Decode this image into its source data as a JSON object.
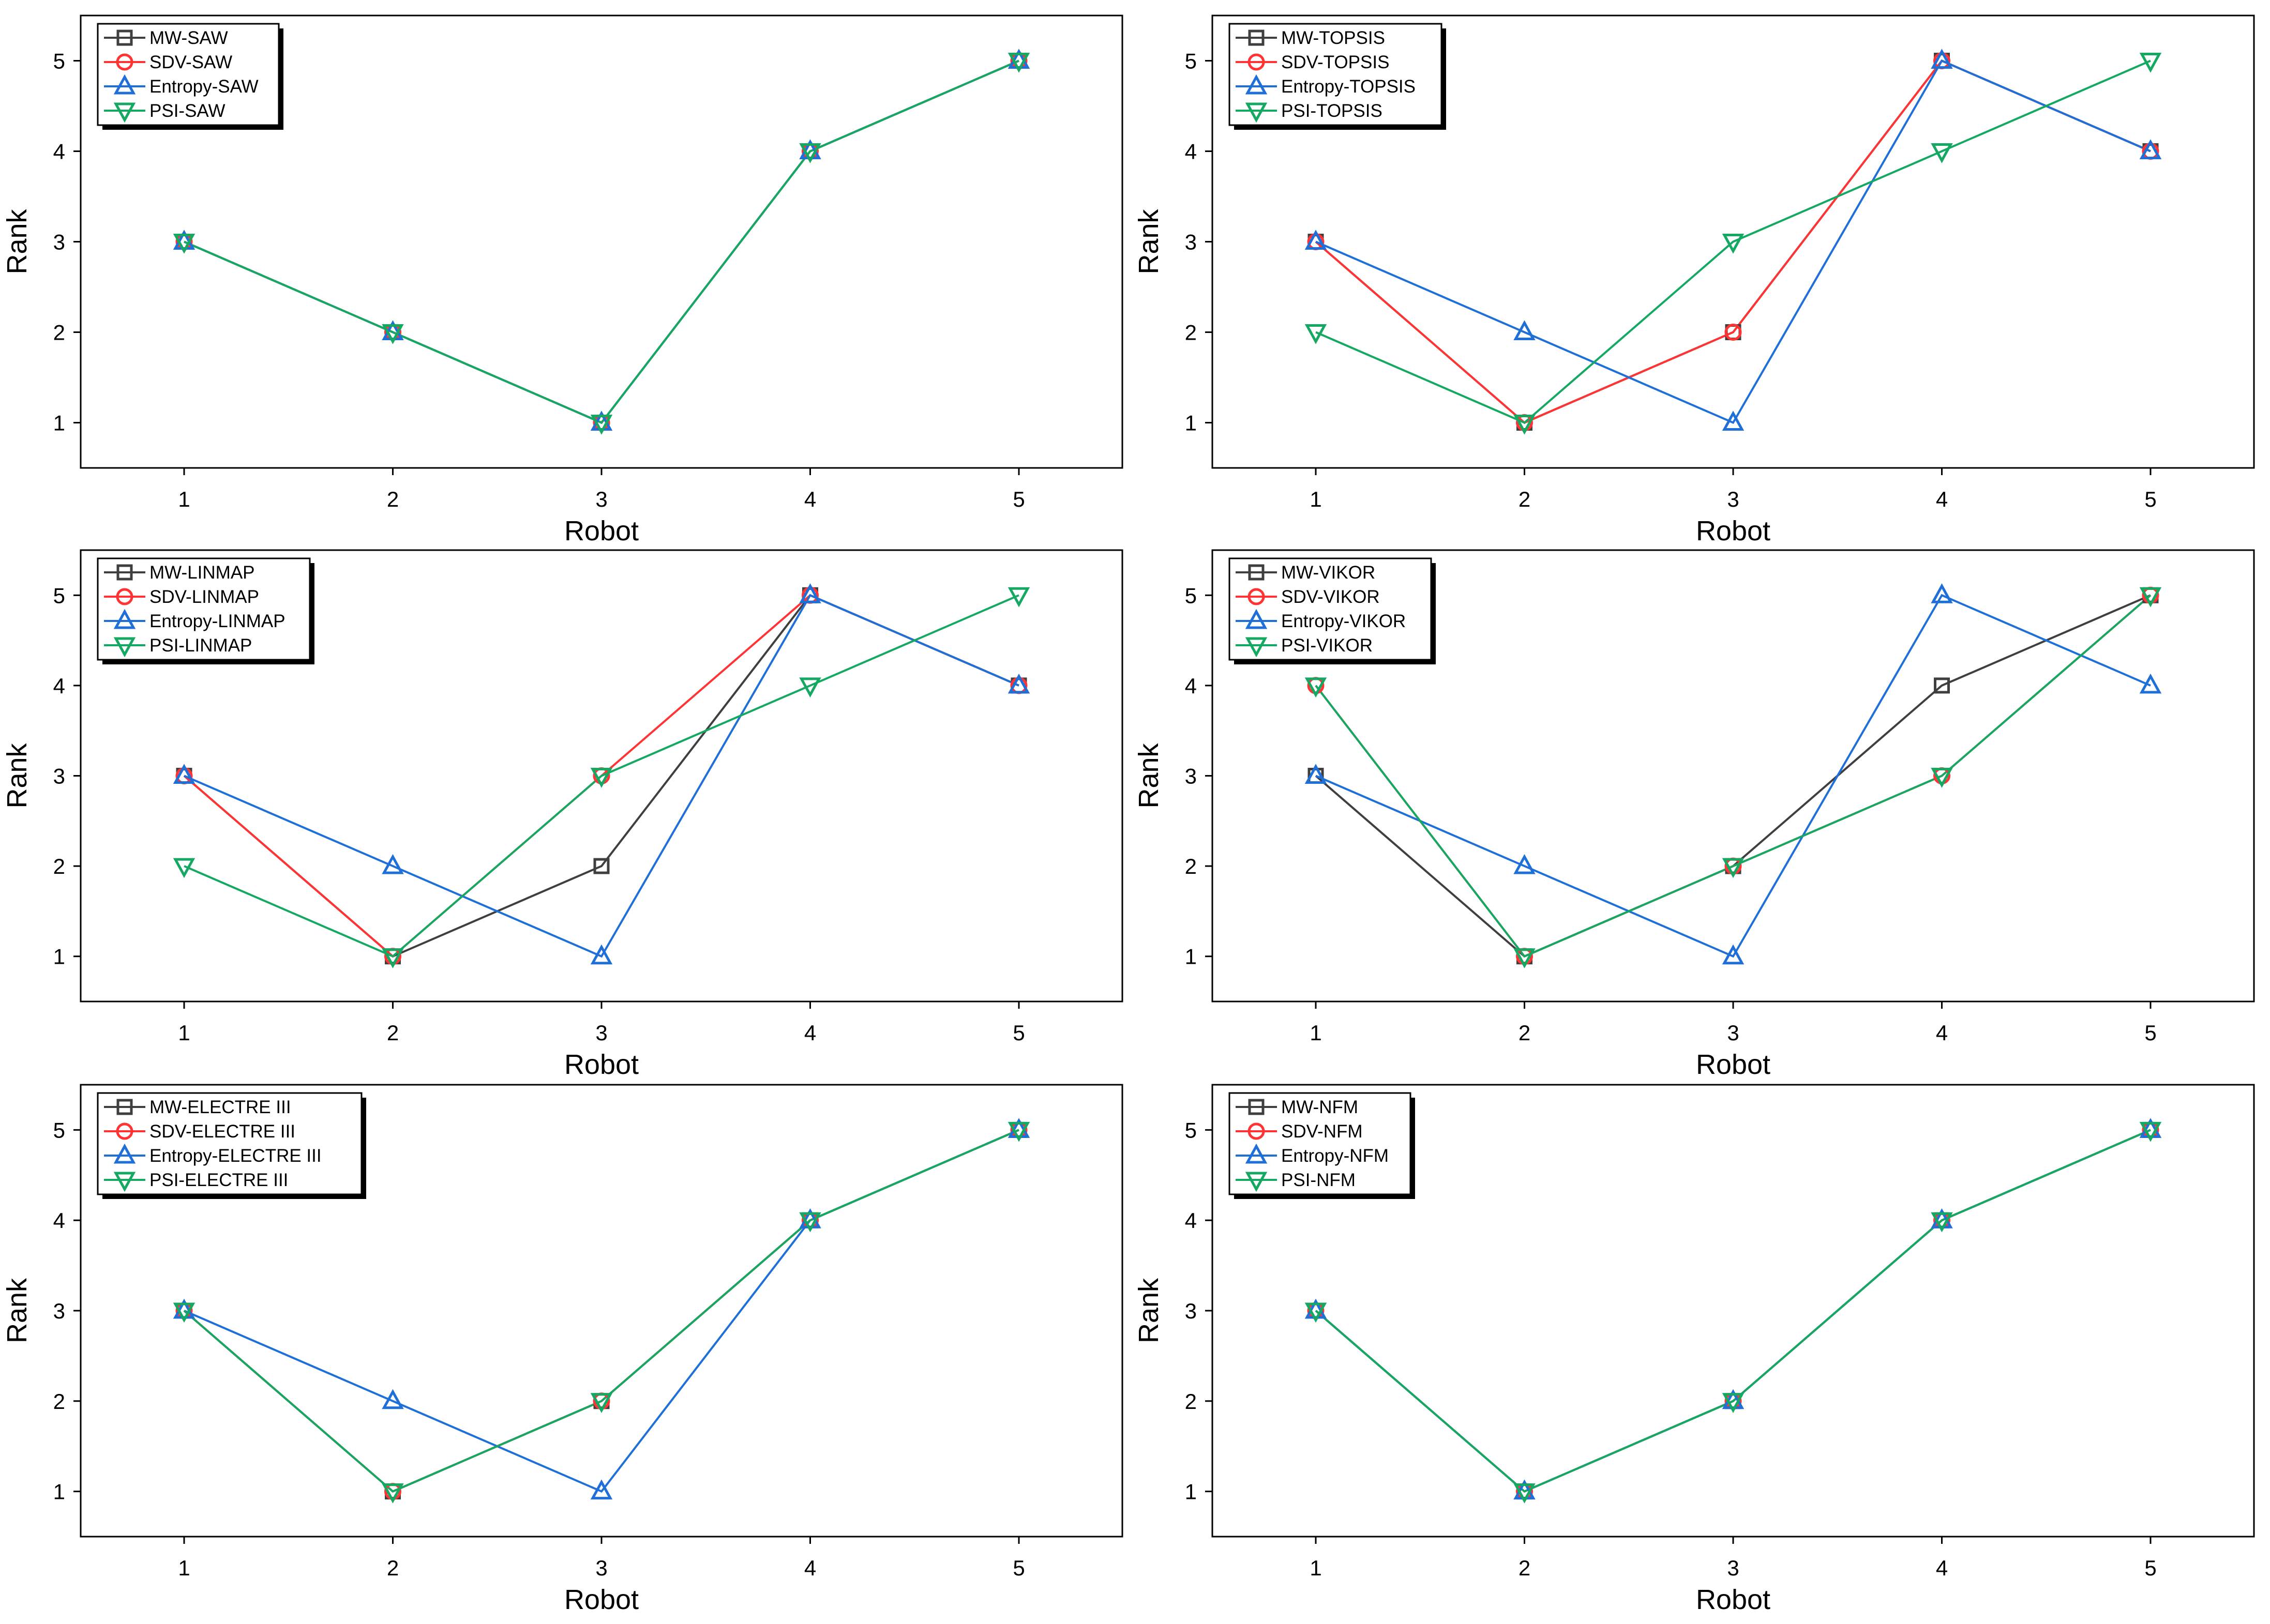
{
  "chart_data": [
    {
      "type": "line",
      "xlabel": "Robot",
      "ylabel": "Rank",
      "categories": [
        "1",
        "2",
        "3",
        "4",
        "5"
      ],
      "ylim": [
        0.5,
        5.5
      ],
      "yticks": [
        "1",
        "2",
        "3",
        "4",
        "5"
      ],
      "grid": false,
      "legend_position": "top-left",
      "series": [
        {
          "name": "MW-SAW",
          "values": [
            3,
            2,
            1,
            4,
            5
          ]
        },
        {
          "name": "SDV-SAW",
          "values": [
            3,
            2,
            1,
            4,
            5
          ]
        },
        {
          "name": "Entropy-SAW",
          "values": [
            3,
            2,
            1,
            4,
            5
          ]
        },
        {
          "name": "PSI-SAW",
          "values": [
            3,
            2,
            1,
            4,
            5
          ]
        }
      ]
    },
    {
      "type": "line",
      "xlabel": "Robot",
      "ylabel": "Rank",
      "categories": [
        "1",
        "2",
        "3",
        "4",
        "5"
      ],
      "ylim": [
        0.5,
        5.5
      ],
      "yticks": [
        "1",
        "2",
        "3",
        "4",
        "5"
      ],
      "grid": false,
      "legend_position": "top-left",
      "series": [
        {
          "name": "MW-TOPSIS",
          "values": [
            3,
            1,
            2,
            5,
            4
          ]
        },
        {
          "name": "SDV-TOPSIS",
          "values": [
            3,
            1,
            2,
            5,
            4
          ]
        },
        {
          "name": "Entropy-TOPSIS",
          "values": [
            3,
            2,
            1,
            5,
            4
          ]
        },
        {
          "name": "PSI-TOPSIS",
          "values": [
            2,
            1,
            3,
            4,
            5
          ]
        }
      ]
    },
    {
      "type": "line",
      "xlabel": "Robot",
      "ylabel": "Rank",
      "categories": [
        "1",
        "2",
        "3",
        "4",
        "5"
      ],
      "ylim": [
        0.5,
        5.5
      ],
      "yticks": [
        "1",
        "2",
        "3",
        "4",
        "5"
      ],
      "grid": false,
      "legend_position": "top-left",
      "series": [
        {
          "name": "MW-LINMAP",
          "values": [
            3,
            1,
            2,
            5,
            4
          ]
        },
        {
          "name": "SDV-LINMAP",
          "values": [
            3,
            1,
            3,
            5,
            4
          ]
        },
        {
          "name": "Entropy-LINMAP",
          "values": [
            3,
            2,
            1,
            5,
            4
          ]
        },
        {
          "name": "PSI-LINMAP",
          "values": [
            2,
            1,
            3,
            4,
            5
          ]
        }
      ]
    },
    {
      "type": "line",
      "xlabel": "Robot",
      "ylabel": "Rank",
      "categories": [
        "1",
        "2",
        "3",
        "4",
        "5"
      ],
      "ylim": [
        0.5,
        5.5
      ],
      "yticks": [
        "1",
        "2",
        "3",
        "4",
        "5"
      ],
      "grid": false,
      "legend_position": "top-left",
      "series": [
        {
          "name": "MW-VIKOR",
          "values": [
            3,
            1,
            2,
            4,
            5
          ]
        },
        {
          "name": "SDV-VIKOR",
          "values": [
            4,
            1,
            2,
            3,
            5
          ]
        },
        {
          "name": "Entropy-VIKOR",
          "values": [
            3,
            2,
            1,
            5,
            4
          ]
        },
        {
          "name": "PSI-VIKOR",
          "values": [
            4,
            1,
            2,
            3,
            5
          ]
        }
      ]
    },
    {
      "type": "line",
      "xlabel": "Robot",
      "ylabel": "Rank",
      "categories": [
        "1",
        "2",
        "3",
        "4",
        "5"
      ],
      "ylim": [
        0.5,
        5.5
      ],
      "yticks": [
        "1",
        "2",
        "3",
        "4",
        "5"
      ],
      "grid": false,
      "legend_position": "top-left",
      "series": [
        {
          "name": "MW-ELECTRE III",
          "values": [
            3,
            1,
            2,
            4,
            5
          ]
        },
        {
          "name": "SDV-ELECTRE III",
          "values": [
            3,
            1,
            2,
            4,
            5
          ]
        },
        {
          "name": "Entropy-ELECTRE III",
          "values": [
            3,
            2,
            1,
            4,
            5
          ]
        },
        {
          "name": "PSI-ELECTRE III",
          "values": [
            3,
            1,
            2,
            4,
            5
          ]
        }
      ]
    },
    {
      "type": "line",
      "xlabel": "Robot",
      "ylabel": "Rank",
      "categories": [
        "1",
        "2",
        "3",
        "4",
        "5"
      ],
      "ylim": [
        0.5,
        5.5
      ],
      "yticks": [
        "1",
        "2",
        "3",
        "4",
        "5"
      ],
      "grid": false,
      "legend_position": "top-left",
      "series": [
        {
          "name": "MW-NFM",
          "values": [
            3,
            1,
            2,
            4,
            5
          ]
        },
        {
          "name": "SDV-NFM",
          "values": [
            3,
            1,
            2,
            4,
            5
          ]
        },
        {
          "name": "Entropy-NFM",
          "values": [
            3,
            1,
            2,
            4,
            5
          ]
        },
        {
          "name": "PSI-NFM",
          "values": [
            3,
            1,
            2,
            4,
            5
          ]
        }
      ]
    }
  ],
  "styles": {
    "series_colors": [
      "#3f3f3f",
      "#ff3333",
      "#1f6fd8",
      "#14a862"
    ],
    "series_markers": [
      "square",
      "circle",
      "triangle-up",
      "triangle-down"
    ]
  }
}
